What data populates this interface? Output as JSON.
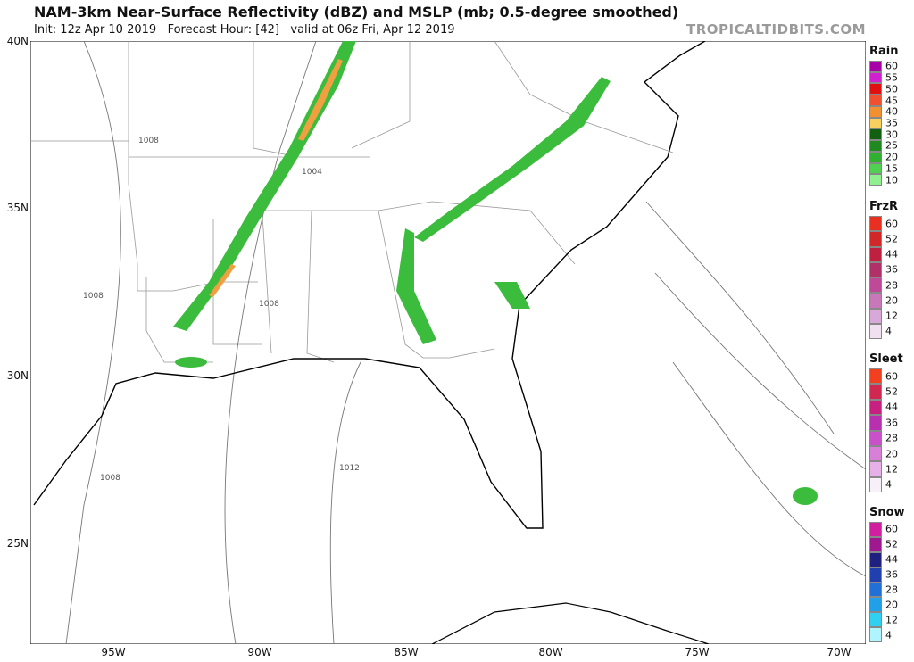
{
  "header": {
    "title": "NAM-3km Near-Surface Reflectivity (dBZ) and MSLP (mb; 0.5-degree smoothed)",
    "subtitle": "Init: 12z Apr 10 2019   Forecast Hour: [42]   valid at 06z Fri, Apr 12 2019",
    "watermark": "TROPICALTIDBITS.COM"
  },
  "map": {
    "latitude_labels": [
      "40N",
      "35N",
      "30N",
      "25N"
    ],
    "longitude_labels": [
      "95W",
      "90W",
      "85W",
      "80W",
      "75W",
      "70W"
    ],
    "isobar_labels": [
      "1008",
      "1004",
      "1008",
      "1008",
      "1008",
      "1012"
    ]
  },
  "legend": [
    {
      "title": "Rain",
      "items": [
        {
          "label": "60",
          "color": "#a800a8"
        },
        {
          "label": "55",
          "color": "#d020d0"
        },
        {
          "label": "50",
          "color": "#e01010"
        },
        {
          "label": "45",
          "color": "#f05030"
        },
        {
          "label": "40",
          "color": "#f09030"
        },
        {
          "label": "35",
          "color": "#f8d060"
        },
        {
          "label": "30",
          "color": "#106010"
        },
        {
          "label": "25",
          "color": "#208a20"
        },
        {
          "label": "20",
          "color": "#30b030"
        },
        {
          "label": "15",
          "color": "#50d050"
        },
        {
          "label": "10",
          "color": "#90f090"
        }
      ]
    },
    {
      "title": "FrzR",
      "items": [
        {
          "label": "60",
          "color": "#e83020"
        },
        {
          "label": "52",
          "color": "#d02828"
        },
        {
          "label": "44",
          "color": "#c02040"
        },
        {
          "label": "36",
          "color": "#b03068"
        },
        {
          "label": "28",
          "color": "#c04898"
        },
        {
          "label": "20",
          "color": "#c878b8"
        },
        {
          "label": "12",
          "color": "#d8a8d8"
        },
        {
          "label": "4",
          "color": "#f0e0f0"
        }
      ]
    },
    {
      "title": "Sleet",
      "items": [
        {
          "label": "60",
          "color": "#f04020"
        },
        {
          "label": "52",
          "color": "#d02850"
        },
        {
          "label": "44",
          "color": "#c82080"
        },
        {
          "label": "36",
          "color": "#b830b0"
        },
        {
          "label": "28",
          "color": "#c850c8"
        },
        {
          "label": "20",
          "color": "#d880d8"
        },
        {
          "label": "12",
          "color": "#e8b0e8"
        },
        {
          "label": "4",
          "color": "#f8f0f8"
        }
      ]
    },
    {
      "title": "Snow",
      "items": [
        {
          "label": "60",
          "color": "#d020a0"
        },
        {
          "label": "52",
          "color": "#a01890"
        },
        {
          "label": "44",
          "color": "#202080"
        },
        {
          "label": "36",
          "color": "#2040b0"
        },
        {
          "label": "28",
          "color": "#2070d8"
        },
        {
          "label": "20",
          "color": "#20a0e8"
        },
        {
          "label": "12",
          "color": "#30d0f0"
        },
        {
          "label": "4",
          "color": "#b0f4ff"
        }
      ]
    }
  ]
}
